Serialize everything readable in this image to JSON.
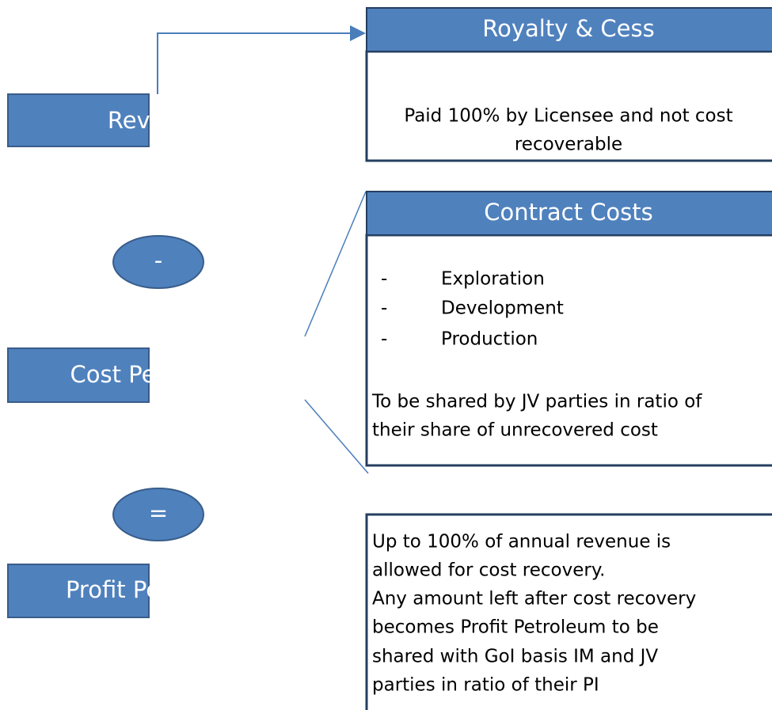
{
  "nodes": [
    {
      "label": "Revenue"
    },
    {
      "label": "-"
    },
    {
      "label": "Cost Petroleum"
    },
    {
      "label": "="
    },
    {
      "label": "Profit Petroleum"
    }
  ],
  "panels": [
    {
      "title": "Royalty & Cess",
      "lines": [
        "Paid 100% by Licensee and not cost",
        "recoverable"
      ]
    },
    {
      "title": "Contract Costs",
      "bullets": [
        "Exploration",
        "Development",
        "Production"
      ],
      "bullet_marker": "-",
      "lines": [
        "To be shared by JV parties in ratio of",
        "their share of unrecovered cost"
      ]
    },
    {
      "lines": [
        "Up to 100% of annual revenue is",
        "allowed for cost recovery.",
        "Any amount left after cost recovery",
        "becomes Profit Petroleum to be",
        "shared with GoI basis IM and JV",
        "parties in ratio of their PI"
      ]
    }
  ]
}
